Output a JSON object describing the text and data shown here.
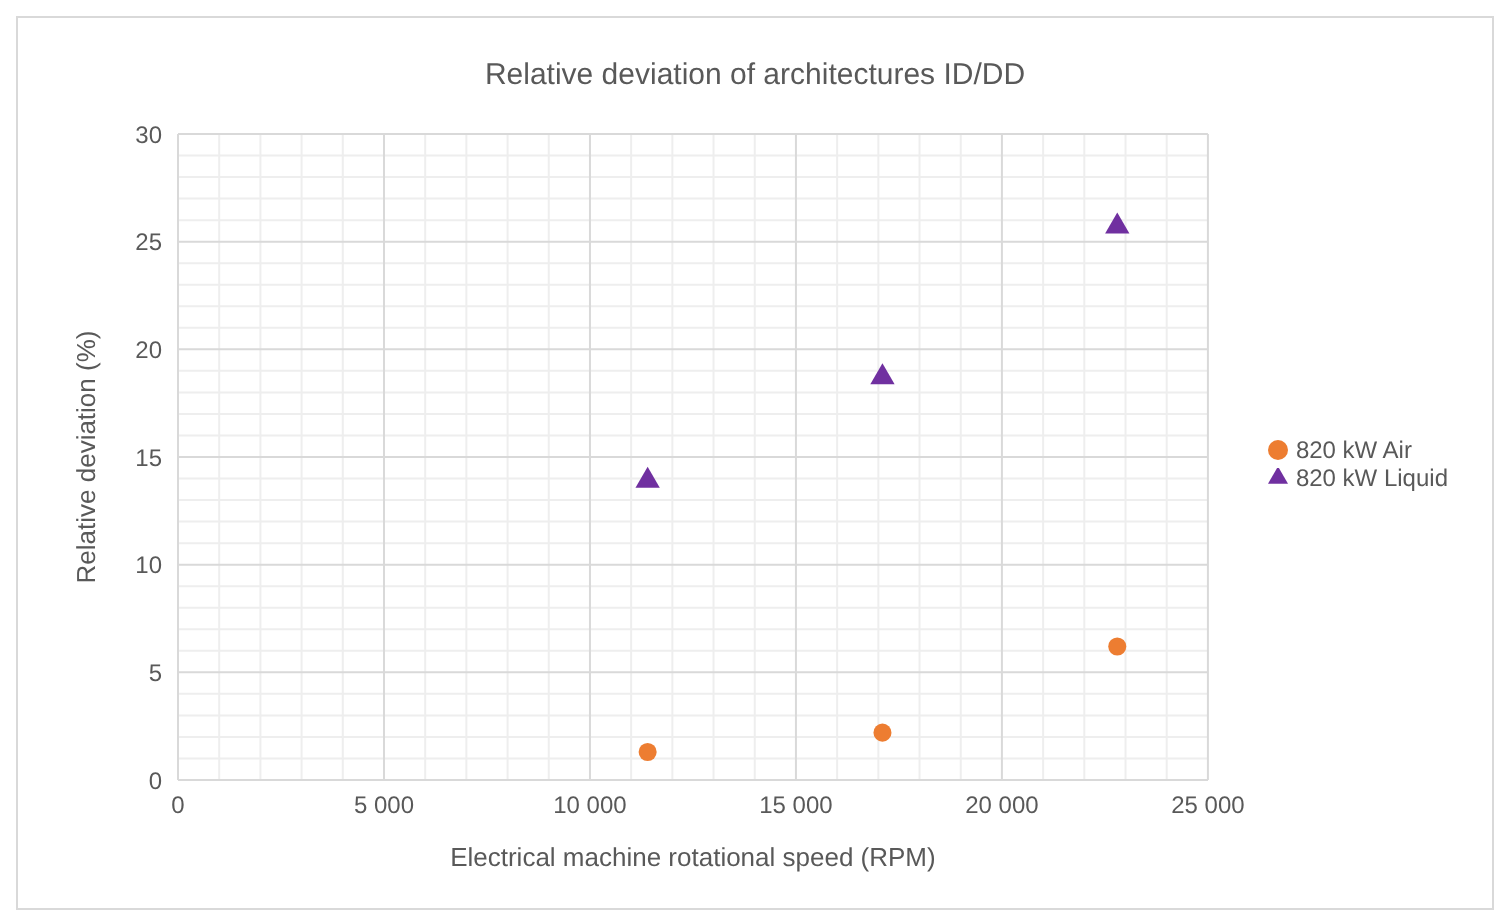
{
  "chart_data": {
    "type": "scatter",
    "title": "Relative deviation of architectures ID/DD",
    "xlabel": "Electrical machine rotational speed (RPM)",
    "ylabel": "Relative deviation (%)",
    "xlim": [
      0,
      25000
    ],
    "xticks": [
      0,
      {
        "value": 5000,
        "label": "5 000"
      },
      {
        "value": 10000,
        "label": "10 000"
      },
      {
        "value": 15000,
        "label": "15 000"
      },
      {
        "value": 20000,
        "label": "20 000"
      },
      {
        "value": 25000,
        "label": "25 000"
      }
    ],
    "ylim": [
      0,
      30
    ],
    "yticks": [
      0,
      5,
      10,
      15,
      20,
      25,
      30
    ],
    "grid": true,
    "legend": "right",
    "series": [
      {
        "name": "820 kW Air",
        "color": "#ed7d31",
        "marker": "circle",
        "x": [
          11400,
          17100,
          22800
        ],
        "values": [
          1.3,
          2.2,
          6.2
        ]
      },
      {
        "name": "820 kW Liquid",
        "color": "#7030a0",
        "marker": "triangle",
        "x": [
          11400,
          17100,
          22800
        ],
        "values": [
          13.9,
          18.7,
          25.7
        ]
      }
    ]
  }
}
